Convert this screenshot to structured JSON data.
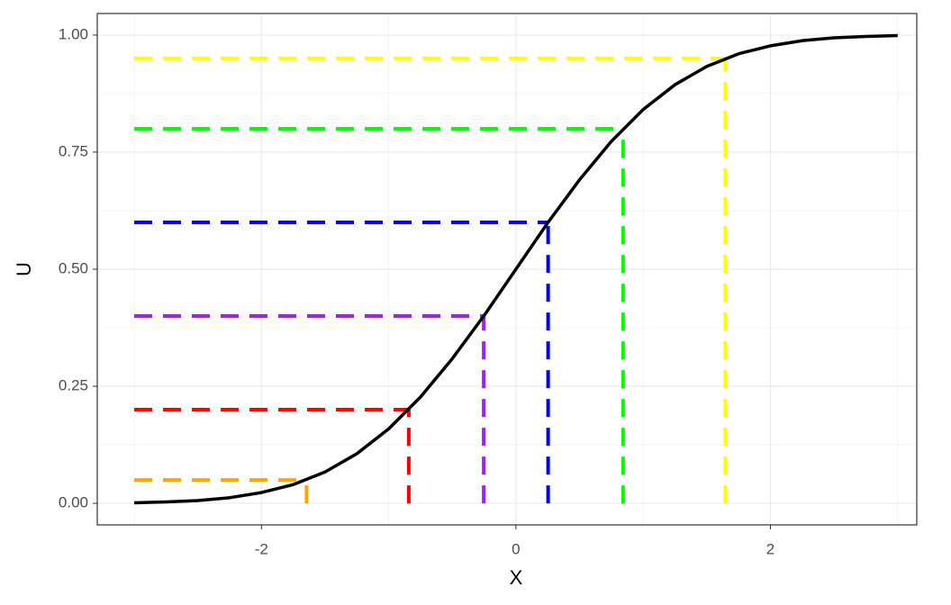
{
  "chart_data": {
    "type": "line",
    "xlabel": "X",
    "ylabel": "U",
    "x": [
      -3,
      -2.75,
      -2.5,
      -2.25,
      -2,
      -1.75,
      -1.5,
      -1.25,
      -1,
      -0.75,
      -0.5,
      -0.25,
      0,
      0.25,
      0.5,
      0.75,
      1,
      1.25,
      1.5,
      1.75,
      2,
      2.25,
      2.5,
      2.75,
      3
    ],
    "series": [
      {
        "color": "#000000",
        "values": [
          0.001,
          0.003,
          0.006,
          0.012,
          0.023,
          0.04,
          0.067,
          0.106,
          0.159,
          0.227,
          0.309,
          0.401,
          0.5,
          0.599,
          0.691,
          0.773,
          0.841,
          0.894,
          0.933,
          0.96,
          0.977,
          0.988,
          0.994,
          0.997,
          0.999
        ]
      }
    ],
    "quantiles": [
      {
        "u": 0.05,
        "x": -1.645,
        "color": "#ffa500"
      },
      {
        "u": 0.2,
        "x": -0.842,
        "color": "#ff0000"
      },
      {
        "u": 0.4,
        "x": -0.253,
        "color": "#a020f0"
      },
      {
        "u": 0.6,
        "x": 0.253,
        "color": "#0000ff"
      },
      {
        "u": 0.8,
        "x": 0.842,
        "color": "#00ff00"
      },
      {
        "u": 0.95,
        "x": 1.645,
        "color": "#ffff00"
      }
    ],
    "xlim": [
      -3.29,
      3.15
    ],
    "ylim": [
      -0.046,
      1.046
    ],
    "xticks": [
      -2,
      0,
      2
    ],
    "yticks": [
      {
        "value": 0,
        "label": "0.00"
      },
      {
        "value": 0.25,
        "label": "0.25"
      },
      {
        "value": 0.5,
        "label": "0.50"
      },
      {
        "value": 0.75,
        "label": "0.75"
      },
      {
        "value": 1,
        "label": "1.00"
      }
    ],
    "grid": true
  }
}
